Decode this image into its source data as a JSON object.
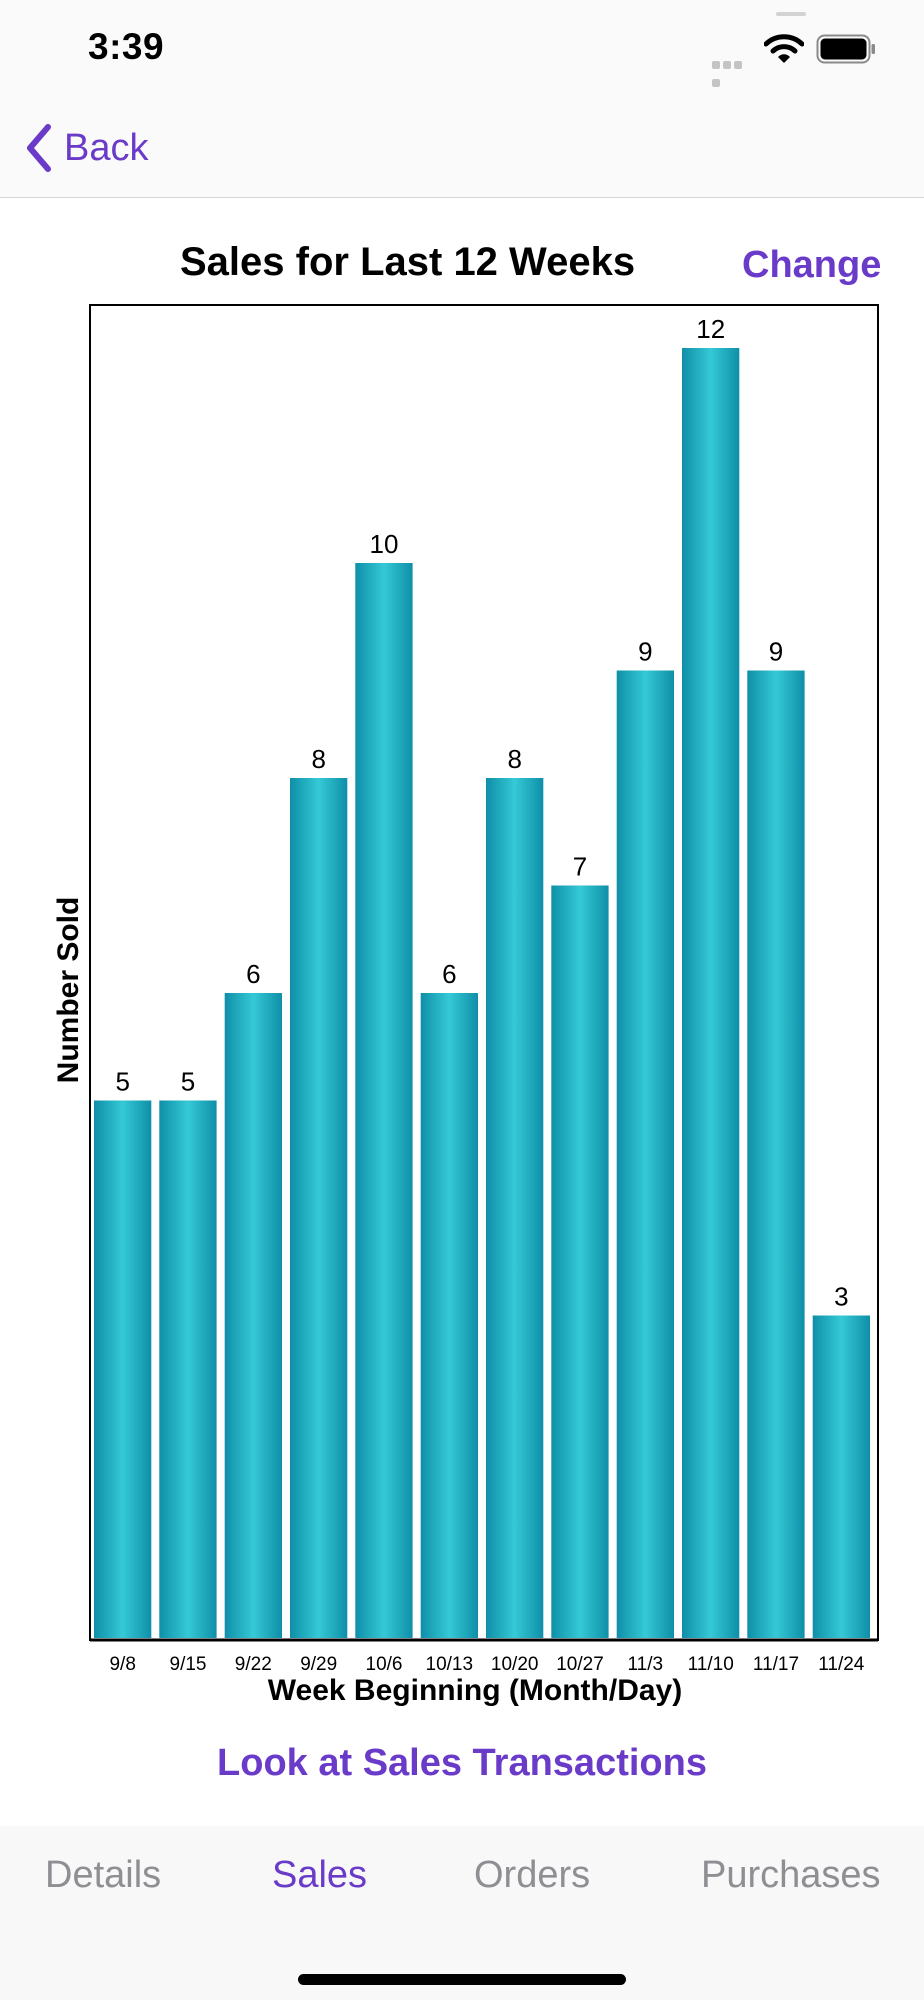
{
  "status_bar": {
    "time": "3:39",
    "icons": [
      "cellular-signal-icon",
      "wifi-icon",
      "battery-icon"
    ]
  },
  "nav": {
    "back_label": "Back",
    "back_icon": "chevron-left-icon"
  },
  "header": {
    "change_label": "Change"
  },
  "chart_data": {
    "type": "bar",
    "title": "Sales for Last 12 Weeks",
    "xlabel": "Week Beginning (Month/Day)",
    "ylabel": "Number Sold",
    "categories": [
      "9/8",
      "9/15",
      "9/22",
      "9/29",
      "10/6",
      "10/13",
      "10/20",
      "10/27",
      "11/3",
      "11/10",
      "11/17",
      "11/24"
    ],
    "values": [
      5,
      5,
      6,
      8,
      10,
      6,
      8,
      7,
      9,
      12,
      9,
      3
    ],
    "ylim": [
      0,
      12.4
    ],
    "data_labels": true,
    "grid": false,
    "colors": {
      "bar_edge": "#0f8fa8",
      "bar_center": "#35c9d6",
      "axis": "#000000"
    }
  },
  "link": {
    "label": "Look at Sales Transactions"
  },
  "tabs": [
    {
      "label": "Details",
      "active": false
    },
    {
      "label": "Sales",
      "active": true
    },
    {
      "label": "Orders",
      "active": false
    },
    {
      "label": "Purchases",
      "active": false
    }
  ],
  "colors": {
    "accent": "#6a3bc8",
    "inactive_tab": "#8e8e93"
  }
}
